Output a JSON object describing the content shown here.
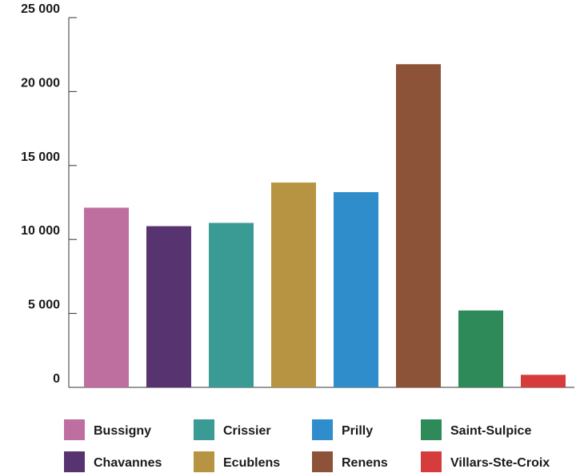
{
  "chart_data": {
    "type": "bar",
    "title": "",
    "xlabel": "",
    "ylabel": "",
    "categories": [
      "Bussigny",
      "Chavannes",
      "Crissier",
      "Ecublens",
      "Prilly",
      "Renens",
      "Saint-Sulpice",
      "Villars-Ste-Croix"
    ],
    "values": [
      12150,
      10900,
      11120,
      13850,
      13200,
      21850,
      5200,
      850
    ],
    "colors": [
      "#bf6f9f",
      "#57336f",
      "#3a9a94",
      "#b79442",
      "#2f8dcb",
      "#8d5339",
      "#2f8a5a",
      "#d63c3c"
    ],
    "ylim": [
      0,
      25000
    ],
    "yticks": [
      0,
      5000,
      10000,
      15000,
      20000,
      25000
    ],
    "ytick_labels": [
      "0",
      "5 000",
      "10 000",
      "15 000",
      "20 000",
      "25 000"
    ],
    "grid": false,
    "legend": {
      "position": "bottom",
      "columns": 4,
      "entries": [
        "Bussigny",
        "Chavannes",
        "Crissier",
        "Ecublens",
        "Prilly",
        "Renens",
        "Saint-Sulpice",
        "Villars-Ste-Croix"
      ]
    }
  }
}
